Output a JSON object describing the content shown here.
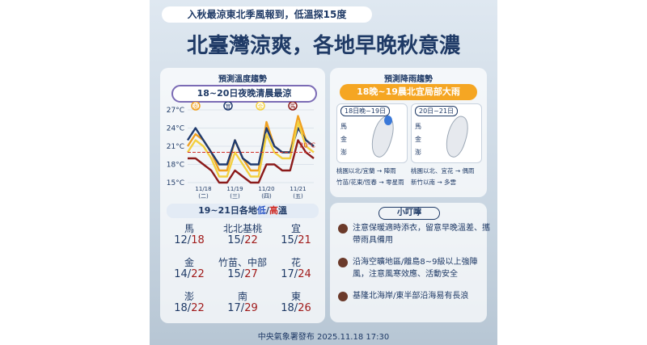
{
  "header": {
    "subtitle": "入秋最涼東北季風報到，低溫探15度",
    "title": "北臺灣涼爽，各地早晚秋意濃"
  },
  "temperature": {
    "heading": "預測溫度趨勢",
    "highlight": "18~20日夜晚清晨最涼"
  },
  "chart_data": {
    "type": "line",
    "categories": [
      null,
      null,
      "11/18",
      null,
      null,
      null,
      "11/19",
      null,
      null,
      null,
      "11/20",
      null,
      null,
      null,
      "11/21",
      null,
      null
    ],
    "day_labels": [
      null,
      null,
      "(二)",
      null,
      null,
      null,
      "(三)",
      null,
      null,
      null,
      "(四)",
      null,
      null,
      null,
      "(五)",
      null,
      null
    ],
    "series": [
      {
        "name": "澎",
        "color": "#f0a020",
        "values": [
          21,
          23,
          22,
          20,
          17,
          17,
          22,
          19,
          17,
          17,
          25,
          21,
          20,
          20,
          26,
          22,
          21
        ]
      },
      {
        "name": "宜",
        "color": "#1f3a6e",
        "values": [
          22,
          24,
          22,
          20,
          18,
          18,
          22,
          19,
          18,
          18,
          24,
          21,
          20,
          20,
          24,
          22,
          21
        ]
      },
      {
        "name": "金",
        "color": "#f3d040",
        "values": [
          20,
          22,
          21,
          19,
          16,
          16,
          20,
          18,
          16,
          16,
          23,
          20,
          19,
          19,
          25,
          21,
          20
        ]
      },
      {
        "name": "馬",
        "color": "#8b1a1a",
        "values": [
          19,
          19,
          18,
          17,
          15,
          15,
          17,
          16,
          15,
          15,
          18,
          18,
          17,
          17,
          22,
          20,
          19
        ]
      }
    ],
    "ylim": [
      15,
      27
    ],
    "yticks": [
      {
        "value": 15,
        "label": "15°C"
      },
      {
        "value": 18,
        "label": "18°C"
      },
      {
        "value": 21,
        "label": "21°C"
      },
      {
        "value": 24,
        "label": "24°C"
      },
      {
        "value": 27,
        "label": "27°C"
      }
    ],
    "threshold": {
      "value": 20,
      "label": "20°C",
      "color": "#d0302a"
    }
  },
  "table": {
    "title": "19~21日各地",
    "low_word": "低",
    "separator": "/",
    "high_word": "高",
    "suffix": "溫",
    "rows": [
      {
        "name": "馬",
        "low": 12,
        "high": 18
      },
      {
        "name": "北北基桃",
        "low": 15,
        "high": 22
      },
      {
        "name": "宜",
        "low": 15,
        "high": 21
      },
      {
        "name": "金",
        "low": 14,
        "high": 22
      },
      {
        "name": "竹苗、中部",
        "low": 15,
        "high": 27
      },
      {
        "name": "花",
        "low": 17,
        "high": 24
      },
      {
        "name": "澎",
        "low": 18,
        "high": 22
      },
      {
        "name": "南",
        "low": 17,
        "high": 29
      },
      {
        "name": "東",
        "low": 18,
        "high": 26
      }
    ]
  },
  "rain": {
    "heading": "預測降雨趨勢",
    "highlight": "18晚~19晨北宜局部大雨",
    "islands": [
      "馬",
      "金",
      "澎"
    ],
    "periods": [
      {
        "label": "18日晚~19日",
        "notes": [
          "桃園以北/宜蘭 → 陣雨",
          "竹苗/花東/恆春 → 零星雨"
        ]
      },
      {
        "label": "20日~21日",
        "notes": [
          "桃園以北、宜花 → 偶雨",
          "新竹以南 → 多雲"
        ]
      }
    ]
  },
  "tips": {
    "heading": "小叮嚀",
    "items": [
      "注意保暖適時添衣，留意早晚溫差、攜帶雨具備用",
      "沿海空曠地區/離島8~9級以上強陣風，注意風寒效應、活動安全",
      "基隆北海岸/東半部沿海易有長浪"
    ]
  },
  "footer": "中央氣象署發布 2025.11.18 17:30"
}
